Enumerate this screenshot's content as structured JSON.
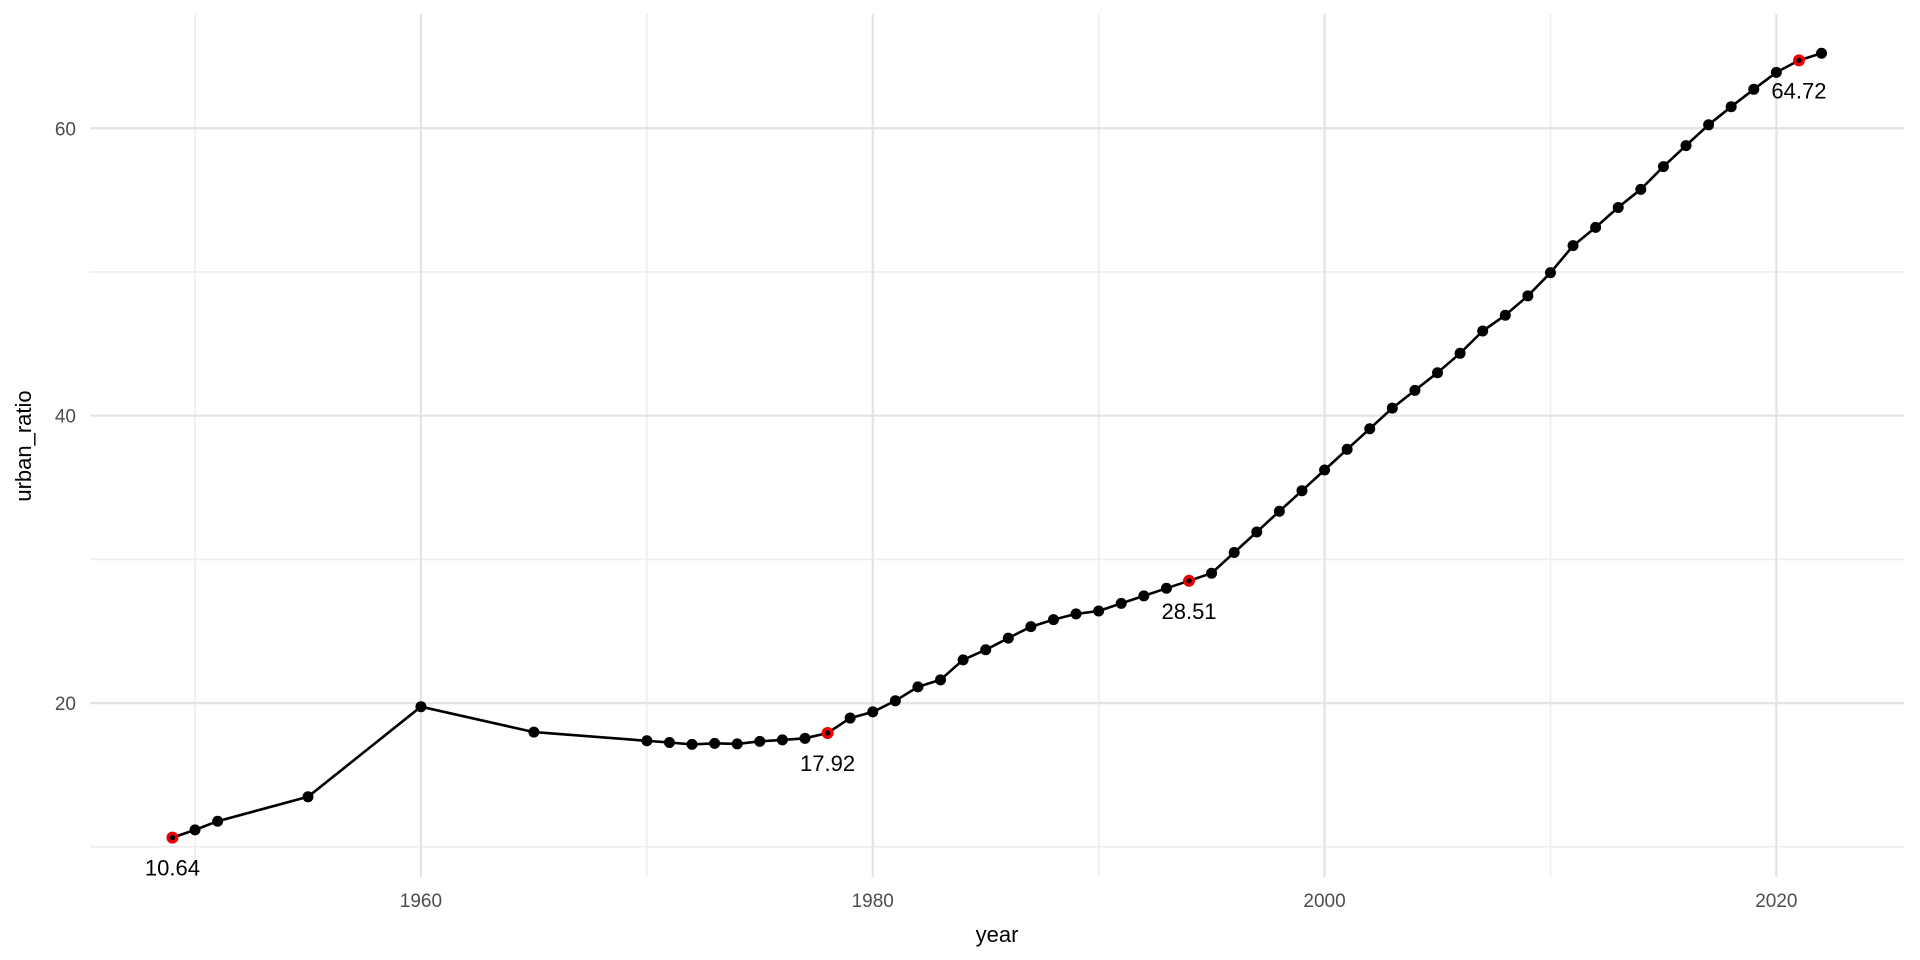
{
  "chart_data": {
    "type": "line",
    "title": "",
    "xlabel": "year",
    "ylabel": "urban_ratio",
    "grid": "on",
    "legend": "none",
    "x": [
      1949,
      1950,
      1951,
      1955,
      1960,
      1965,
      1970,
      1971,
      1972,
      1973,
      1974,
      1975,
      1976,
      1977,
      1978,
      1979,
      1980,
      1981,
      1982,
      1983,
      1984,
      1985,
      1986,
      1987,
      1988,
      1989,
      1990,
      1991,
      1992,
      1993,
      1994,
      1995,
      1996,
      1997,
      1998,
      1999,
      2000,
      2001,
      2002,
      2003,
      2004,
      2005,
      2006,
      2007,
      2008,
      2009,
      2010,
      2011,
      2012,
      2013,
      2014,
      2015,
      2016,
      2017,
      2018,
      2019,
      2020,
      2021,
      2022
    ],
    "y": [
      10.64,
      11.18,
      11.78,
      13.48,
      19.75,
      17.98,
      17.38,
      17.26,
      17.13,
      17.2,
      17.16,
      17.34,
      17.44,
      17.55,
      17.92,
      18.96,
      19.39,
      20.16,
      21.13,
      21.62,
      23.01,
      23.71,
      24.52,
      25.32,
      25.81,
      26.21,
      26.41,
      26.94,
      27.46,
      27.99,
      28.51,
      29.04,
      30.48,
      31.91,
      33.35,
      34.78,
      36.22,
      37.66,
      39.09,
      40.53,
      41.76,
      42.99,
      44.34,
      45.89,
      46.99,
      48.34,
      49.95,
      51.83,
      53.1,
      54.49,
      55.75,
      57.33,
      58.79,
      60.24,
      61.5,
      62.71,
      63.89,
      64.72,
      65.22
    ],
    "xlim": [
      1945.35,
      2025.65
    ],
    "ylim": [
      7.9,
      67.95
    ],
    "x_ticks": [
      1960,
      1980,
      2000,
      2020
    ],
    "x_minor_ticks": [
      1950,
      1970,
      1990,
      2010
    ],
    "y_ticks": [
      20,
      40,
      60
    ],
    "y_minor_ticks": [
      10,
      30,
      50
    ],
    "annotations": [
      {
        "x": 1949,
        "y": 10.64,
        "label": "10.64"
      },
      {
        "x": 1978,
        "y": 17.92,
        "label": "17.92"
      },
      {
        "x": 1994,
        "y": 28.51,
        "label": "28.51"
      },
      {
        "x": 2021,
        "y": 64.72,
        "label": "64.72"
      }
    ],
    "colors": {
      "line": "#000000",
      "point": "#000000",
      "highlight_ring": "#ee0000",
      "grid_major": "#e3e3e3",
      "grid_minor": "#ededed",
      "tick_label": "#4d4d4d",
      "axis_title": "#000000",
      "annotation": "#000000",
      "background": "#ffffff"
    }
  }
}
